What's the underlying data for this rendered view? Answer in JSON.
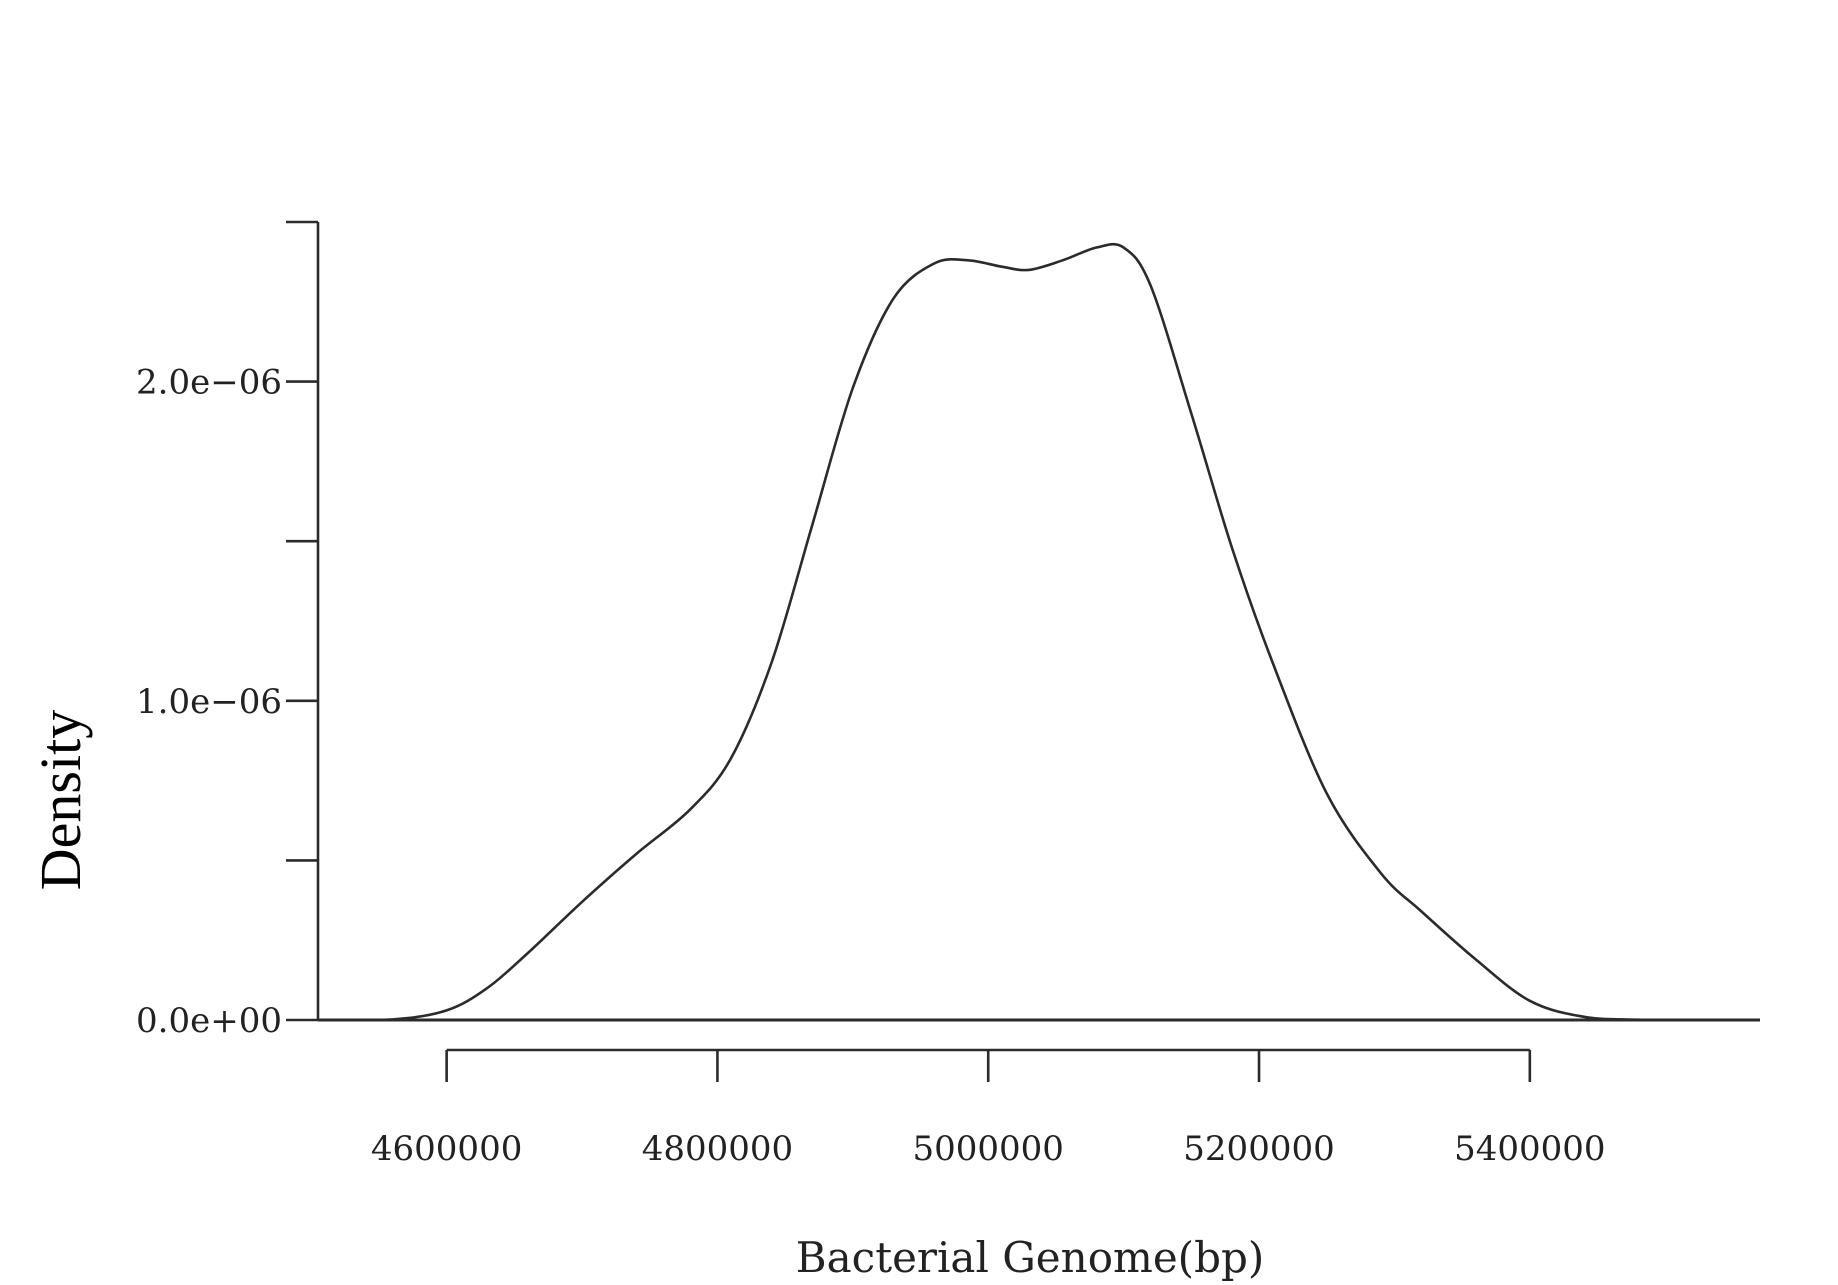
{
  "chart_data": {
    "type": "line",
    "title": "",
    "xlabel": "Bacterial Genome(bp)",
    "ylabel": "Density",
    "x_ticks": [
      {
        "value": 4600000,
        "label": "4600000"
      },
      {
        "value": 4800000,
        "label": "4800000"
      },
      {
        "value": 5000000,
        "label": "5000000"
      },
      {
        "value": 5200000,
        "label": "5200000"
      },
      {
        "value": 5400000,
        "label": "5400000"
      }
    ],
    "y_ticks": [
      {
        "value": 0,
        "label": "0.0e+00"
      },
      {
        "value": 5e-07,
        "label": ""
      },
      {
        "value": 1e-06,
        "label": "1.0e−06"
      },
      {
        "value": 1.5e-06,
        "label": ""
      },
      {
        "value": 2e-06,
        "label": "2.0e−06"
      },
      {
        "value": 2.5e-06,
        "label": ""
      }
    ],
    "xlim": [
      4505000,
      5570000
    ],
    "ylim": [
      0,
      2.5e-06
    ],
    "grid": false,
    "series": [
      {
        "x": [
          4505000,
          4560000,
          4600000,
          4630000,
          4660000,
          4700000,
          4740000,
          4780000,
          4810000,
          4840000,
          4870000,
          4900000,
          4930000,
          4960000,
          4985000,
          5010000,
          5030000,
          5055000,
          5080000,
          5100000,
          5120000,
          5150000,
          5180000,
          5210000,
          5250000,
          5290000,
          5320000,
          5360000,
          5400000,
          5440000,
          5480000,
          5530000,
          5570000
        ],
        "y": [
          0,
          2e-09,
          3e-08,
          1e-07,
          2.1e-07,
          3.7e-07,
          5.2e-07,
          6.6e-07,
          8.2e-07,
          1.12e-06,
          1.55e-06,
          1.98e-06,
          2.26e-06,
          2.37e-06,
          2.38e-06,
          2.36e-06,
          2.35e-06,
          2.38e-06,
          2.42e-06,
          2.42e-06,
          2.3e-06,
          1.9e-06,
          1.48e-06,
          1.12e-06,
          7.1e-07,
          4.6e-07,
          3.4e-07,
          1.9e-07,
          6e-08,
          1e-08,
          1e-09,
          0,
          0
        ]
      }
    ]
  }
}
